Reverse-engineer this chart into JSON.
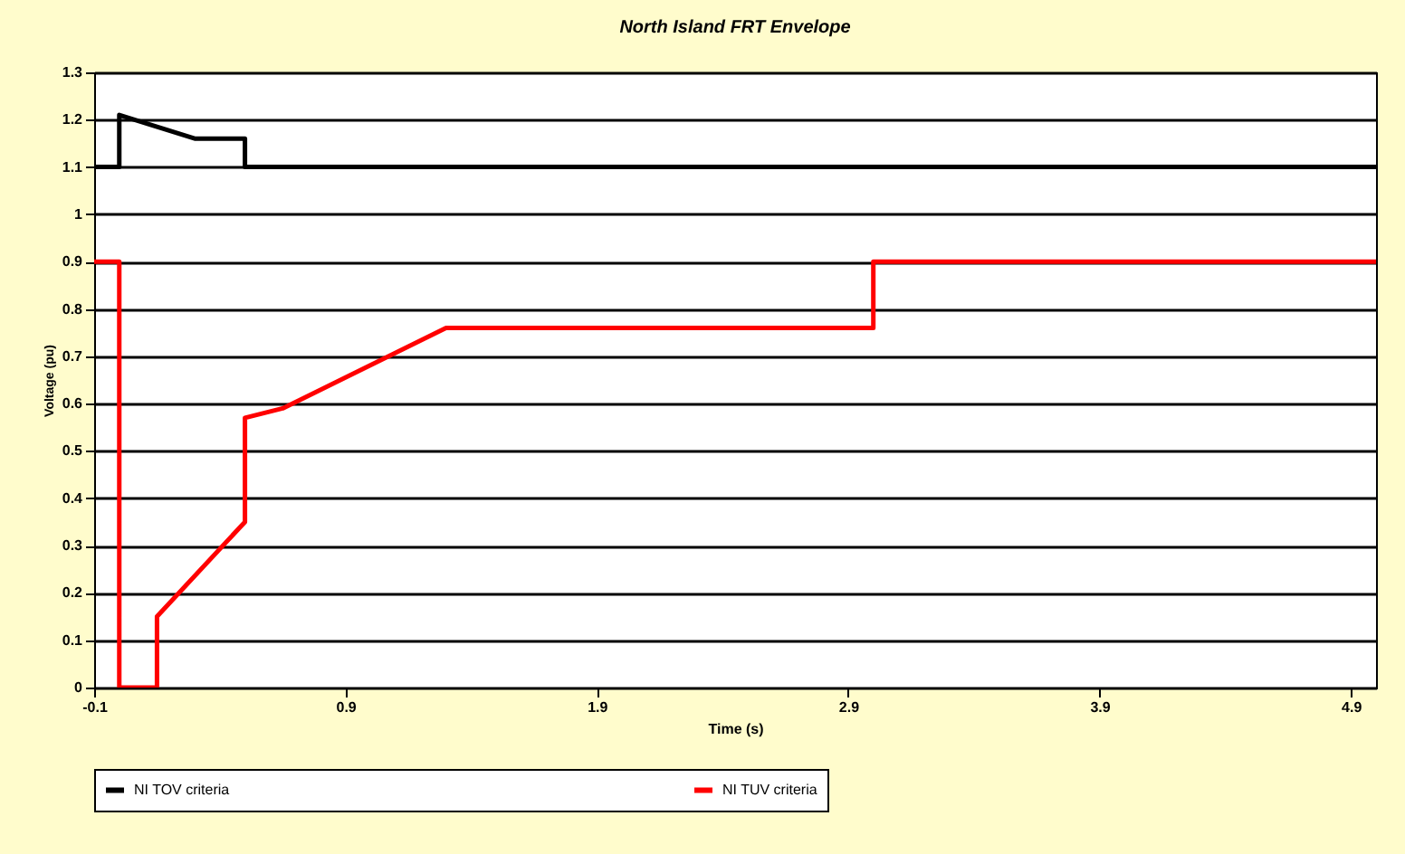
{
  "chart_data": {
    "type": "line",
    "title": "North Island  FRT Envelope",
    "xlabel": "Time (s)",
    "ylabel": "Voltage (pu)",
    "xlim": [
      -0.1,
      5.0
    ],
    "xticks": [
      -0.1,
      0.9,
      1.9,
      2.9,
      3.9,
      4.9
    ],
    "ylim": [
      0,
      1.3
    ],
    "yticks": [
      0,
      0.1,
      0.2,
      0.3,
      0.4,
      0.5,
      0.6,
      0.7,
      0.8,
      0.9,
      1,
      1.1,
      1.2,
      1.3
    ],
    "grid": "y",
    "legend": "bottom",
    "line_style": "solid",
    "marker": "none",
    "series": [
      {
        "name": "NI TOV criteria",
        "color": "#000000",
        "x": [
          -0.1,
          0,
          0,
          0.3,
          0.5,
          0.5,
          5.0
        ],
        "values": [
          1.1,
          1.1,
          1.21,
          1.16,
          1.16,
          1.1,
          1.1
        ]
      },
      {
        "name": "NI TUV criteria",
        "color": "#ff0000",
        "x": [
          -0.1,
          0,
          0,
          0.15,
          0.15,
          0.5,
          0.5,
          0.65,
          1.3,
          3.0,
          3.0,
          5.0
        ],
        "values": [
          0.9,
          0.9,
          0,
          0,
          0.15,
          0.35,
          0.57,
          0.59,
          0.76,
          0.76,
          0.9,
          0.9
        ]
      }
    ]
  }
}
